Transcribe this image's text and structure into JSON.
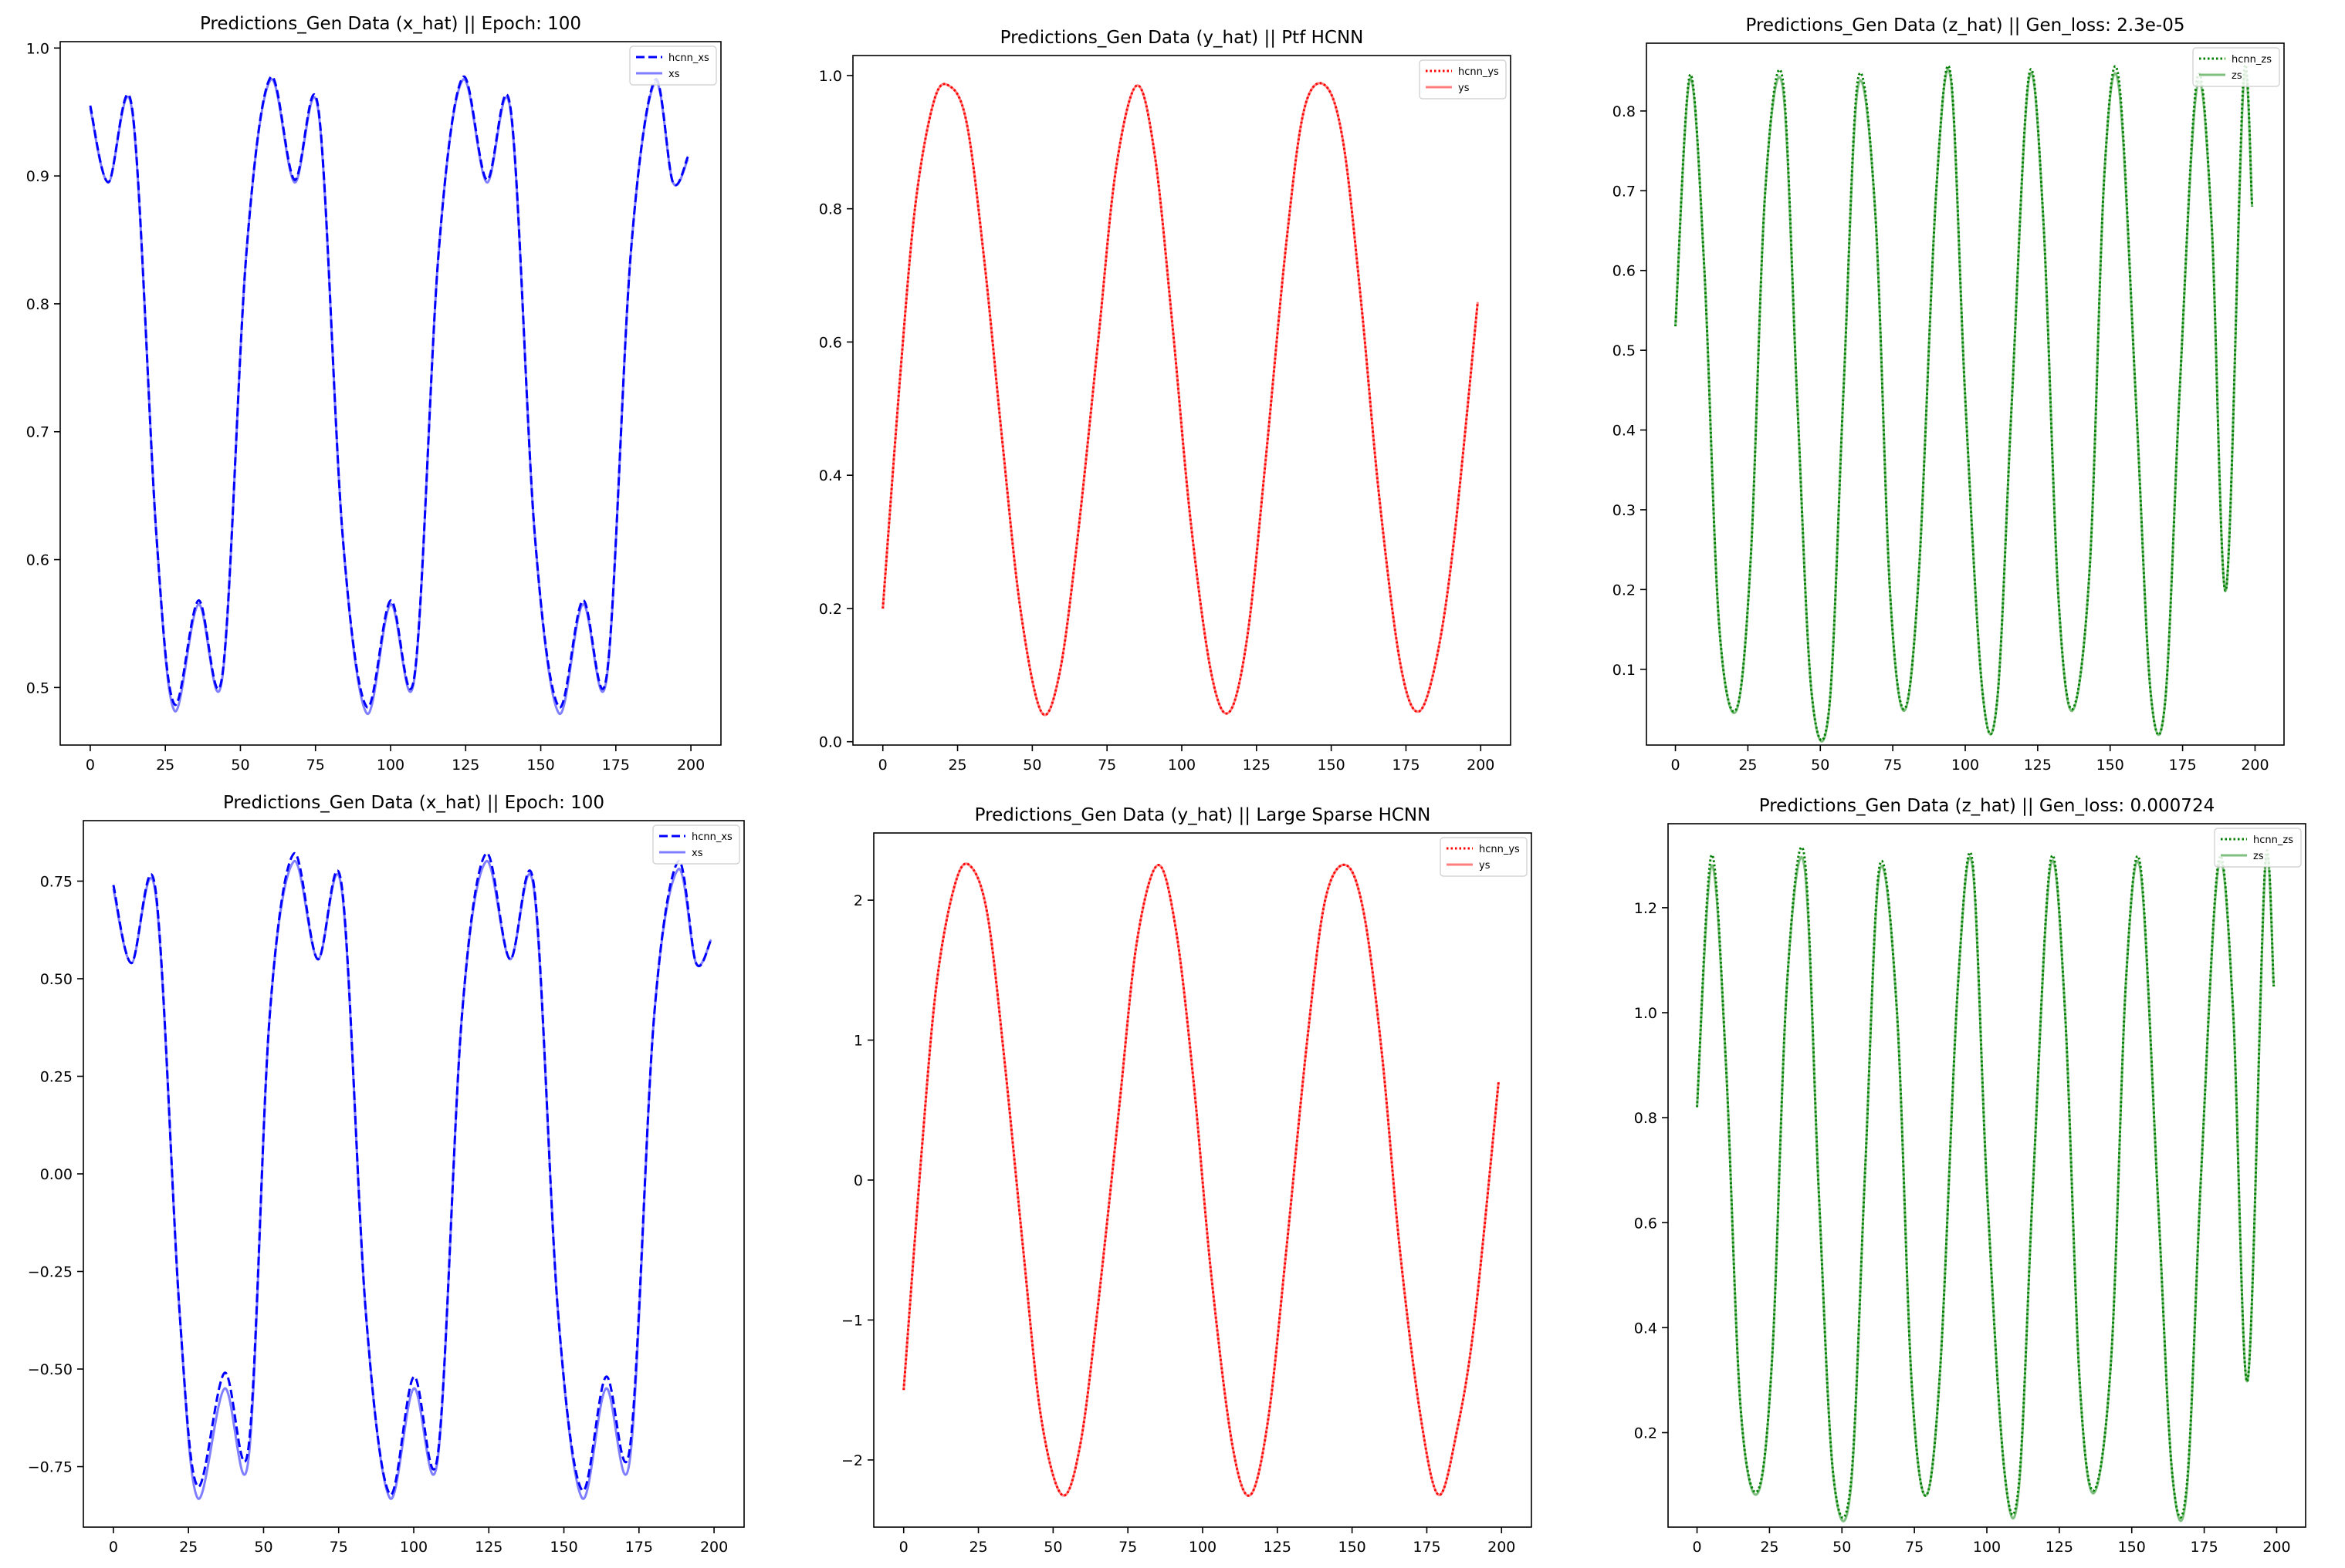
{
  "chart_data": [
    {
      "type": "line",
      "title": "Predictions_Gen Data (x_hat) || Epoch: 100",
      "xlabel": "",
      "ylabel": "",
      "xlim": [
        -10,
        210
      ],
      "ylim": [
        0.455,
        1.005
      ],
      "xticks": [
        0,
        25,
        50,
        75,
        100,
        125,
        150,
        175,
        200
      ],
      "yticks": [
        0.5,
        0.6,
        0.7,
        0.8,
        0.9,
        1.0
      ],
      "ytick_labels": [
        "0.5",
        "0.6",
        "0.7",
        "0.8",
        "0.9",
        "1.0"
      ],
      "color": "#0000ff",
      "legend_position": "upper-right",
      "series": [
        {
          "name": "hcnn_xs",
          "style": "dashed",
          "alpha": 1.0,
          "x": [
            0,
            6,
            14,
            22,
            28,
            36,
            44,
            52,
            60,
            68,
            76,
            84,
            92,
            100,
            108,
            116,
            124,
            132,
            140,
            148,
            156,
            164,
            172,
            180,
            188,
            194,
            199
          ],
          "y": [
            0.955,
            0.895,
            0.952,
            0.62,
            0.487,
            0.568,
            0.51,
            0.84,
            0.977,
            0.897,
            0.952,
            0.62,
            0.485,
            0.568,
            0.51,
            0.84,
            0.977,
            0.897,
            0.952,
            0.62,
            0.485,
            0.568,
            0.51,
            0.84,
            0.975,
            0.895,
            0.915
          ]
        },
        {
          "name": "xs",
          "style": "solid",
          "alpha": 0.5,
          "x": [
            0,
            6,
            14,
            22,
            28,
            36,
            44,
            52,
            60,
            68,
            76,
            84,
            92,
            100,
            108,
            116,
            124,
            132,
            140,
            148,
            156,
            164,
            172,
            180,
            188,
            194,
            199
          ],
          "y": [
            0.953,
            0.895,
            0.95,
            0.62,
            0.482,
            0.565,
            0.508,
            0.84,
            0.975,
            0.895,
            0.95,
            0.62,
            0.48,
            0.565,
            0.508,
            0.84,
            0.975,
            0.895,
            0.95,
            0.62,
            0.48,
            0.565,
            0.508,
            0.84,
            0.973,
            0.895,
            0.913
          ]
        }
      ]
    },
    {
      "type": "line",
      "title": "Predictions_Gen Data (y_hat) || Ptf HCNN",
      "xlabel": "",
      "ylabel": "",
      "xlim": [
        -10,
        210
      ],
      "ylim": [
        -0.005,
        1.03
      ],
      "xticks": [
        0,
        25,
        50,
        75,
        100,
        125,
        150,
        175,
        200
      ],
      "yticks": [
        0.0,
        0.2,
        0.4,
        0.6,
        0.8,
        1.0
      ],
      "ytick_labels": [
        "0.0",
        "0.2",
        "0.4",
        "0.6",
        "0.8",
        "1.0"
      ],
      "color": "#ff0000",
      "legend_position": "upper-right",
      "series": [
        {
          "name": "hcnn_ys",
          "style": "dotted",
          "alpha": 1.0,
          "x": [
            0,
            6,
            11,
            17,
            22,
            28,
            34,
            40,
            46,
            53,
            59,
            65,
            72,
            78,
            85,
            91,
            97,
            103,
            110,
            116,
            122,
            128,
            135,
            141,
            148,
            154,
            160,
            166,
            173,
            179,
            185,
            191,
            199
          ],
          "y": [
            0.2,
            0.56,
            0.81,
            0.96,
            0.985,
            0.93,
            0.72,
            0.45,
            0.2,
            0.045,
            0.1,
            0.3,
            0.6,
            0.86,
            0.985,
            0.88,
            0.62,
            0.33,
            0.1,
            0.045,
            0.16,
            0.42,
            0.75,
            0.95,
            0.985,
            0.9,
            0.66,
            0.37,
            0.12,
            0.045,
            0.12,
            0.3,
            0.66
          ]
        },
        {
          "name": "ys",
          "style": "solid",
          "alpha": 0.5,
          "x": [
            0,
            6,
            11,
            17,
            22,
            28,
            34,
            40,
            46,
            53,
            59,
            65,
            72,
            78,
            85,
            91,
            97,
            103,
            110,
            116,
            122,
            128,
            135,
            141,
            148,
            154,
            160,
            166,
            173,
            179,
            185,
            191,
            199
          ],
          "y": [
            0.2,
            0.56,
            0.81,
            0.96,
            0.985,
            0.93,
            0.72,
            0.45,
            0.2,
            0.045,
            0.1,
            0.3,
            0.6,
            0.86,
            0.985,
            0.88,
            0.62,
            0.33,
            0.1,
            0.045,
            0.16,
            0.42,
            0.75,
            0.95,
            0.985,
            0.9,
            0.66,
            0.37,
            0.12,
            0.045,
            0.12,
            0.3,
            0.66
          ]
        }
      ]
    },
    {
      "type": "line",
      "title": "Predictions_Gen Data (z_hat) || Gen_loss: 2.3e-05",
      "xlabel": "",
      "ylabel": "",
      "xlim": [
        -10,
        210
      ],
      "ylim": [
        0.005,
        0.885
      ],
      "xticks": [
        0,
        25,
        50,
        75,
        100,
        125,
        150,
        175,
        200
      ],
      "yticks": [
        0.1,
        0.2,
        0.3,
        0.4,
        0.5,
        0.6,
        0.7,
        0.8
      ],
      "ytick_labels": [
        "0.1",
        "0.2",
        "0.3",
        "0.4",
        "0.5",
        "0.6",
        "0.7",
        "0.8"
      ],
      "color": "#008000",
      "legend_position": "upper-right",
      "series": [
        {
          "name": "hcnn_zs",
          "style": "dotted",
          "alpha": 1.0,
          "x": [
            0,
            5,
            10,
            15,
            21,
            26,
            31,
            37,
            42,
            47,
            53,
            58,
            63,
            69,
            74,
            79,
            84,
            90,
            95,
            100,
            106,
            111,
            116,
            122,
            127,
            132,
            137,
            143,
            148,
            153,
            159,
            164,
            169,
            174,
            180,
            185,
            190,
            196,
            199
          ],
          "y": [
            0.53,
            0.845,
            0.6,
            0.16,
            0.05,
            0.24,
            0.7,
            0.84,
            0.44,
            0.07,
            0.05,
            0.45,
            0.84,
            0.67,
            0.2,
            0.05,
            0.22,
            0.7,
            0.845,
            0.44,
            0.07,
            0.06,
            0.43,
            0.845,
            0.66,
            0.2,
            0.05,
            0.23,
            0.72,
            0.84,
            0.43,
            0.07,
            0.06,
            0.45,
            0.84,
            0.66,
            0.2,
            0.84,
            0.68
          ]
        },
        {
          "name": "zs",
          "style": "solid",
          "alpha": 0.5,
          "x": [
            0,
            5,
            10,
            15,
            21,
            26,
            31,
            37,
            42,
            47,
            53,
            58,
            63,
            69,
            74,
            79,
            84,
            90,
            95,
            100,
            106,
            111,
            116,
            122,
            127,
            132,
            137,
            143,
            148,
            153,
            159,
            164,
            169,
            174,
            180,
            185,
            190,
            196,
            199
          ],
          "y": [
            0.53,
            0.84,
            0.6,
            0.16,
            0.048,
            0.24,
            0.7,
            0.83,
            0.44,
            0.07,
            0.048,
            0.45,
            0.83,
            0.67,
            0.2,
            0.048,
            0.22,
            0.7,
            0.84,
            0.44,
            0.07,
            0.06,
            0.43,
            0.84,
            0.66,
            0.2,
            0.048,
            0.23,
            0.72,
            0.83,
            0.43,
            0.07,
            0.06,
            0.45,
            0.83,
            0.66,
            0.2,
            0.83,
            0.68
          ]
        }
      ]
    },
    {
      "type": "line",
      "title": "Predictions_Gen Data (x_hat) || Epoch: 100",
      "xlabel": "",
      "ylabel": "",
      "xlim": [
        -10,
        210
      ],
      "ylim": [
        -0.905,
        0.905
      ],
      "xticks": [
        0,
        25,
        50,
        75,
        100,
        125,
        150,
        175,
        200
      ],
      "yticks": [
        -0.75,
        -0.5,
        -0.25,
        0.0,
        0.25,
        0.5,
        0.75
      ],
      "ytick_labels": [
        "−0.75",
        "−0.50",
        "−0.25",
        "0.00",
        "0.25",
        "0.50",
        "0.75"
      ],
      "color": "#0000ff",
      "legend_position": "upper-right",
      "series": [
        {
          "name": "hcnn_xs",
          "style": "dashed",
          "alpha": 1.0,
          "x": [
            0,
            6,
            14,
            22,
            28,
            37,
            45,
            52,
            60,
            68,
            76,
            84,
            92,
            100,
            108,
            116,
            124,
            132,
            140,
            148,
            156,
            164,
            172,
            180,
            188,
            194,
            199
          ],
          "y": [
            0.74,
            0.54,
            0.73,
            -0.35,
            -0.8,
            -0.51,
            -0.7,
            0.4,
            0.82,
            0.55,
            0.74,
            -0.35,
            -0.82,
            -0.52,
            -0.72,
            0.4,
            0.82,
            0.55,
            0.74,
            -0.35,
            -0.81,
            -0.52,
            -0.7,
            0.4,
            0.8,
            0.54,
            0.6
          ]
        },
        {
          "name": "xs",
          "style": "solid",
          "alpha": 0.5,
          "x": [
            0,
            6,
            14,
            22,
            28,
            37,
            45,
            52,
            60,
            68,
            76,
            84,
            92,
            100,
            108,
            116,
            124,
            132,
            140,
            148,
            156,
            164,
            172,
            180,
            188,
            194,
            199
          ],
          "y": [
            0.73,
            0.54,
            0.72,
            -0.35,
            -0.83,
            -0.55,
            -0.73,
            0.4,
            0.8,
            0.55,
            0.73,
            -0.35,
            -0.83,
            -0.55,
            -0.73,
            0.4,
            0.8,
            0.55,
            0.73,
            -0.35,
            -0.83,
            -0.55,
            -0.73,
            0.4,
            0.78,
            0.54,
            0.6
          ]
        }
      ]
    },
    {
      "type": "line",
      "title": "Predictions_Gen Data (y_hat) || Large Sparse HCNN",
      "xlabel": "",
      "ylabel": "",
      "xlim": [
        -10,
        210
      ],
      "ylim": [
        -2.48,
        2.48
      ],
      "xticks": [
        0,
        25,
        50,
        75,
        100,
        125,
        150,
        175,
        200
      ],
      "yticks": [
        -2,
        -1,
        0,
        1,
        2
      ],
      "ytick_labels": [
        "−2",
        "−1",
        "0",
        "1",
        "2"
      ],
      "color": "#ff0000",
      "legend_position": "upper-right",
      "series": [
        {
          "name": "hcnn_ys",
          "style": "dotted",
          "alpha": 1.0,
          "x": [
            0,
            6,
            11,
            17,
            22,
            28,
            34,
            40,
            46,
            53,
            59,
            65,
            72,
            78,
            85,
            91,
            97,
            103,
            110,
            116,
            122,
            128,
            135,
            141,
            148,
            154,
            160,
            166,
            173,
            179,
            185,
            191,
            199
          ],
          "y": [
            -1.5,
            0.2,
            1.4,
            2.1,
            2.25,
            1.9,
            0.8,
            -0.5,
            -1.7,
            -2.25,
            -1.9,
            -0.9,
            0.5,
            1.7,
            2.25,
            1.8,
            0.7,
            -0.7,
            -1.9,
            -2.25,
            -1.7,
            -0.5,
            1.0,
            2.0,
            2.25,
            1.9,
            0.9,
            -0.5,
            -1.7,
            -2.25,
            -1.8,
            -1.0,
            0.7
          ]
        },
        {
          "name": "ys",
          "style": "solid",
          "alpha": 0.5,
          "x": [
            0,
            6,
            11,
            17,
            22,
            28,
            34,
            40,
            46,
            53,
            59,
            65,
            72,
            78,
            85,
            91,
            97,
            103,
            110,
            116,
            122,
            128,
            135,
            141,
            148,
            154,
            160,
            166,
            173,
            179,
            185,
            191,
            199
          ],
          "y": [
            -1.5,
            0.2,
            1.4,
            2.1,
            2.25,
            1.9,
            0.8,
            -0.5,
            -1.7,
            -2.25,
            -1.9,
            -0.9,
            0.5,
            1.7,
            2.25,
            1.8,
            0.7,
            -0.7,
            -1.9,
            -2.25,
            -1.7,
            -0.5,
            1.0,
            2.0,
            2.25,
            1.9,
            0.9,
            -0.5,
            -1.7,
            -2.25,
            -1.8,
            -1.0,
            0.7
          ]
        }
      ]
    },
    {
      "type": "line",
      "title": "Predictions_Gen Data (z_hat) || Gen_loss: 0.000724",
      "xlabel": "",
      "ylabel": "",
      "xlim": [
        -10,
        210
      ],
      "ylim": [
        0.02,
        1.36
      ],
      "xticks": [
        0,
        25,
        50,
        75,
        100,
        125,
        150,
        175,
        200
      ],
      "yticks": [
        0.2,
        0.4,
        0.6,
        0.8,
        1.0,
        1.2
      ],
      "ytick_labels": [
        "0.2",
        "0.4",
        "0.6",
        "0.8",
        "1.0",
        "1.2"
      ],
      "color": "#008000",
      "legend_position": "upper-right",
      "series": [
        {
          "name": "hcnn_zs",
          "style": "dotted",
          "alpha": 1.0,
          "x": [
            0,
            5,
            10,
            15,
            21,
            26,
            31,
            37,
            42,
            47,
            53,
            58,
            63,
            69,
            74,
            79,
            84,
            90,
            95,
            100,
            106,
            111,
            116,
            122,
            127,
            132,
            137,
            143,
            148,
            153,
            159,
            164,
            169,
            174,
            180,
            185,
            190,
            196,
            199
          ],
          "y": [
            0.82,
            1.3,
            0.9,
            0.25,
            0.09,
            0.35,
            1.05,
            1.3,
            0.66,
            0.12,
            0.1,
            0.7,
            1.28,
            1.0,
            0.3,
            0.08,
            0.33,
            1.05,
            1.29,
            0.67,
            0.13,
            0.1,
            0.68,
            1.29,
            1.0,
            0.3,
            0.09,
            0.35,
            1.06,
            1.28,
            0.65,
            0.12,
            0.1,
            0.7,
            1.29,
            1.0,
            0.3,
            1.28,
            1.05
          ]
        },
        {
          "name": "zs",
          "style": "solid",
          "alpha": 0.5,
          "x": [
            0,
            5,
            10,
            15,
            21,
            26,
            31,
            37,
            42,
            47,
            53,
            58,
            63,
            69,
            74,
            79,
            84,
            90,
            95,
            100,
            106,
            111,
            116,
            122,
            127,
            132,
            137,
            143,
            148,
            153,
            159,
            164,
            169,
            174,
            180,
            185,
            190,
            196,
            199
          ],
          "y": [
            0.82,
            1.28,
            0.9,
            0.25,
            0.085,
            0.35,
            1.05,
            1.28,
            0.66,
            0.12,
            0.09,
            0.7,
            1.27,
            1.0,
            0.3,
            0.08,
            0.33,
            1.05,
            1.28,
            0.67,
            0.13,
            0.09,
            0.68,
            1.28,
            1.0,
            0.3,
            0.085,
            0.35,
            1.06,
            1.27,
            0.65,
            0.12,
            0.09,
            0.7,
            1.28,
            1.0,
            0.3,
            1.27,
            1.05
          ]
        }
      ]
    }
  ]
}
